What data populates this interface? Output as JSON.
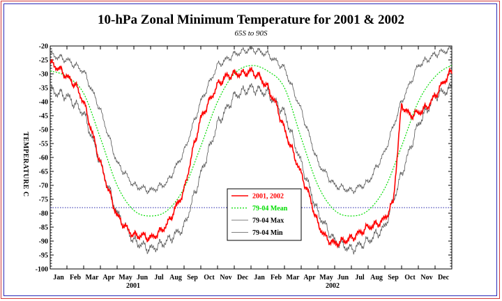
{
  "chart_data": {
    "type": "line",
    "title": "10-hPa Zonal Minimum Temperature for 2001 & 2002",
    "subtitle": "65S to 90S",
    "ylabel": "TEMPERATURE C",
    "ylim": [
      -100,
      -20
    ],
    "yticks": [
      -20,
      -25,
      -30,
      -35,
      -40,
      -45,
      -50,
      -55,
      -60,
      -65,
      -70,
      -75,
      -80,
      -85,
      -90,
      -95,
      -100
    ],
    "xticks": [
      "Jan",
      "Feb",
      "Mar",
      "Apr",
      "May",
      "Jun",
      "Jul",
      "Aug",
      "Sep",
      "Oct",
      "Nov",
      "Dec",
      "Jan",
      "Feb",
      "Mar",
      "Apr",
      "May",
      "Jun",
      "Jul",
      "Aug",
      "Sep",
      "Oct",
      "Nov",
      "Dec"
    ],
    "year_labels": [
      "2001",
      "2002"
    ],
    "reference_line": -78,
    "x_unit": "month index (0 = 1 Jan 2001, 24 = end of Dec 2002)",
    "series": [
      {
        "name": "2001, 2002",
        "color": "#ff0000",
        "x": [
          0,
          0.5,
          1,
          1.5,
          2,
          2.5,
          3,
          3.5,
          4,
          4.5,
          5,
          5.5,
          6,
          6.5,
          7,
          7.5,
          8,
          8.5,
          9,
          9.5,
          10,
          10.5,
          11,
          11.5,
          12,
          12.5,
          13,
          13.5,
          14,
          14.5,
          15,
          15.5,
          16,
          16.5,
          17,
          17.5,
          18,
          18.5,
          19,
          19.5,
          20,
          20.5,
          21,
          21.5,
          22,
          22.5,
          23,
          23.5,
          24
        ],
        "values": [
          -26,
          -28,
          -31,
          -34,
          -40,
          -51,
          -62,
          -72,
          -81,
          -85,
          -88,
          -88,
          -89,
          -87,
          -84,
          -78,
          -72,
          -58,
          -46,
          -40,
          -34,
          -31,
          -30,
          -30,
          -29,
          -31,
          -35,
          -41,
          -50,
          -58,
          -66,
          -74,
          -84,
          -89,
          -91,
          -90,
          -89,
          -87,
          -85,
          -84,
          -82,
          -76,
          -41,
          -45,
          -44,
          -42,
          -38,
          -33,
          -29
        ]
      },
      {
        "name": "79-04 Mean",
        "color": "#00dd00",
        "x": [
          0,
          1,
          2,
          3,
          4,
          5,
          6,
          7,
          8,
          9,
          10,
          11,
          12,
          13,
          14,
          15,
          16,
          17,
          18,
          19,
          20,
          21,
          22,
          23,
          24
        ],
        "values": [
          -29,
          -31,
          -37,
          -53,
          -70,
          -79,
          -81,
          -79,
          -71,
          -56,
          -40,
          -30,
          -27,
          -29,
          -35,
          -53,
          -70,
          -79,
          -81,
          -79,
          -71,
          -56,
          -40,
          -31,
          -27
        ]
      },
      {
        "name": "79-04 Max",
        "color": "#555555",
        "x": [
          0,
          1,
          2,
          3,
          4,
          5,
          6,
          7,
          8,
          9,
          10,
          11,
          12,
          13,
          14,
          15,
          16,
          17,
          18,
          19,
          20,
          21,
          22,
          23,
          24
        ],
        "values": [
          -23,
          -25,
          -29,
          -43,
          -62,
          -70,
          -72,
          -69,
          -58,
          -40,
          -27,
          -23,
          -21,
          -23,
          -28,
          -43,
          -62,
          -70,
          -72,
          -69,
          -58,
          -40,
          -27,
          -23,
          -21
        ]
      },
      {
        "name": "79-04 Min",
        "color": "#555555",
        "x": [
          0,
          1,
          2,
          3,
          4,
          5,
          6,
          7,
          8,
          9,
          10,
          11,
          12,
          13,
          14,
          15,
          16,
          17,
          18,
          19,
          20,
          21,
          22,
          23,
          24
        ],
        "values": [
          -36,
          -38,
          -44,
          -62,
          -80,
          -90,
          -93,
          -90,
          -85,
          -66,
          -48,
          -38,
          -35,
          -37,
          -44,
          -62,
          -80,
          -90,
          -93,
          -90,
          -85,
          -66,
          -48,
          -38,
          -35
        ]
      }
    ],
    "legend_position": "lower-center"
  },
  "colors": {
    "frame_outer": "#d23a3a",
    "frame_inner": "#2a2ab8",
    "reference_line": "#2222aa"
  }
}
